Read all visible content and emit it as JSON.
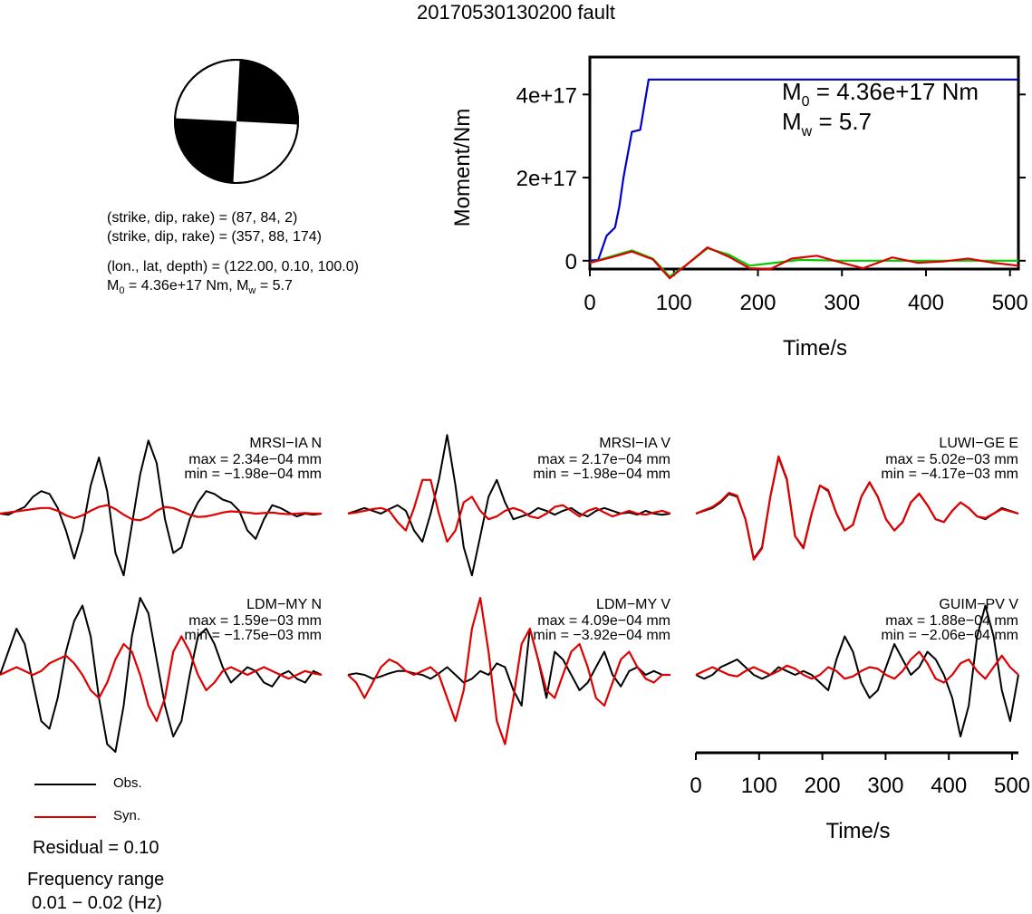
{
  "title": "20170530130200 fault",
  "beachball": {
    "strike": 87,
    "dip": 84,
    "rake": 2,
    "fill_color": "#000000"
  },
  "info": {
    "plane1": "(strike, dip, rake) = (87, 84, 2)",
    "plane2": "(strike, dip, rake) = (357, 88, 174)",
    "location": "(lon., lat, depth) = (122.00, 0.10, 100.0)",
    "moment_prefix": "M",
    "moment_sub": "0",
    "moment_rest": " = 4.36e+17 Nm, M",
    "mw_sub": "w",
    "mw_rest": " = 5.7"
  },
  "legend": {
    "obs_label": "Obs.",
    "syn_label": "Syn.",
    "obs_color": "#000000",
    "syn_color": "#dd0000"
  },
  "residual": "Residual = 0.10",
  "frequency_label": "Frequency range",
  "frequency_value": "0.01 − 0.02 (Hz)",
  "chart_data": [
    {
      "type": "line",
      "name": "moment-rate",
      "xlabel": "Time/s",
      "ylabel": "Moment/Nm",
      "xlim": [
        0,
        510
      ],
      "ylim": [
        -2e+16,
        4.9e+17
      ],
      "xticks": [
        0,
        100,
        200,
        300,
        400,
        500
      ],
      "xtick_labels": [
        "0",
        "100",
        "200",
        "300",
        "400",
        "500"
      ],
      "yticks": [
        0,
        2e+17,
        4e+17
      ],
      "ytick_labels": [
        "0",
        "2e+17",
        "4e+17"
      ],
      "annotation": {
        "m0_prefix": "M",
        "m0_sub": "0",
        "m0_rest": " = 4.36e+17 Nm",
        "mw_prefix": "M",
        "mw_sub": "w",
        "mw_rest": " = 5.7"
      },
      "series": [
        {
          "color": "#0000cc",
          "x": [
            0,
            10,
            20,
            30,
            35,
            40,
            50,
            60,
            70,
            510
          ],
          "y": [
            0,
            2000000000000000.0,
            6e+16,
            8e+16,
            1.3e+17,
            2e+17,
            3.1e+17,
            3.15e+17,
            4.36e+17,
            4.36e+17
          ]
        },
        {
          "color": "#00cc00",
          "x": [
            0,
            25,
            50,
            75,
            95,
            115,
            140,
            165,
            190,
            220,
            250,
            300,
            350,
            400,
            450,
            510
          ],
          "y": [
            -5000000000000000.0,
            1e+16,
            2.5e+16,
            5000000000000000.0,
            -3.8e+16,
            -1e+16,
            3e+16,
            1.5e+16,
            -1.2e+16,
            -5000000000000000.0,
            2000000000000000.0,
            0.0,
            0.0,
            0.0,
            0.0,
            0.0
          ]
        },
        {
          "color": "#dd0000",
          "x": [
            0,
            25,
            50,
            75,
            95,
            115,
            140,
            165,
            190,
            215,
            240,
            270,
            300,
            325,
            360,
            390,
            420,
            450,
            480,
            510
          ],
          "y": [
            -5000000000000000.0,
            8000000000000000.0,
            2.2e+16,
            3000000000000000.0,
            -4.2e+16,
            -1e+16,
            3.2e+16,
            1e+16,
            -1.8e+16,
            -2e+16,
            5000000000000000.0,
            1.2e+16,
            -5000000000000000.0,
            -1.8e+16,
            8000000000000000.0,
            -5000000000000000.0,
            -2000000000000000.0,
            5000000000000000.0,
            -5000000000000000.0,
            -1.2e+16
          ]
        }
      ]
    },
    {
      "type": "line",
      "name": "waveform-fits",
      "xlabel": "Time/s",
      "xlim": [
        0,
        510
      ],
      "xticks": [
        0,
        100,
        200,
        300,
        400,
        500
      ],
      "xtick_labels": [
        "0",
        "100",
        "200",
        "300",
        "400",
        "500"
      ],
      "stations": [
        {
          "label": "MRSI−IA N",
          "max": "max = 2.34e−04 mm",
          "min": "min = −1.98e−04 mm",
          "obs": [
            0,
            -0.02,
            0.05,
            0.12,
            0.3,
            0.4,
            0.35,
            0.1,
            -0.3,
            -0.8,
            -0.3,
            0.5,
            1.0,
            0.4,
            -0.7,
            -1.1,
            -0.2,
            0.7,
            1.3,
            0.9,
            -0.1,
            -0.7,
            -0.6,
            -0.1,
            0.2,
            0.4,
            0.35,
            0.25,
            0.2,
            0.05,
            -0.3,
            -0.45,
            -0.1,
            0.15,
            0.1,
            0.02,
            -0.05,
            0.0,
            -0.02,
            0.0
          ],
          "syn": [
            0,
            0.02,
            0.04,
            0.06,
            0.08,
            0.1,
            0.1,
            0.05,
            -0.03,
            -0.08,
            -0.03,
            0.05,
            0.12,
            0.15,
            0.08,
            -0.02,
            -0.1,
            -0.12,
            -0.06,
            0.05,
            0.12,
            0.1,
            0.04,
            -0.02,
            -0.06,
            -0.05,
            -0.02,
            0.02,
            0.04,
            0.03,
            0.02,
            0.0,
            0.01,
            0.02,
            0.0,
            -0.01,
            0.0,
            0.01,
            0.0,
            0.0
          ]
        },
        {
          "label": "MRSI−IA V",
          "max": "max = 2.17e−04 mm",
          "min": "min = −1.98e−04 mm",
          "obs": [
            0,
            0.05,
            0.1,
            0.05,
            0.0,
            0.08,
            0.15,
            0.05,
            -0.3,
            -0.5,
            0.0,
            0.6,
            1.4,
            0.5,
            -0.6,
            -1.1,
            -0.4,
            0.3,
            0.6,
            0.2,
            -0.1,
            -0.05,
            0.0,
            0.1,
            0.05,
            -0.02,
            0.05,
            0.1,
            0.0,
            -0.05,
            0.05,
            0.1,
            0.05,
            0.0,
            0.02,
            -0.02,
            0.05,
            0.0,
            -0.02,
            0.0
          ],
          "syn": [
            0,
            0.02,
            0.05,
            0.08,
            0.1,
            0.05,
            -0.15,
            -0.3,
            0.1,
            0.6,
            0.6,
            0.0,
            -0.5,
            -0.3,
            0.2,
            0.3,
            0.05,
            -0.1,
            -0.05,
            0.05,
            0.1,
            0.05,
            -0.05,
            -0.08,
            0.0,
            0.12,
            0.15,
            0.05,
            -0.05,
            0.05,
            0.1,
            0.02,
            -0.05,
            0.0,
            0.05,
            0.0,
            -0.02,
            0.02,
            0.05,
            0.0
          ]
        },
        {
          "label": "LUWI−GE E",
          "max": "max = 5.02e−03 mm",
          "min": "min = −4.17e−03 mm",
          "obs": [
            0,
            0.05,
            0.1,
            0.2,
            0.35,
            0.3,
            -0.1,
            -0.8,
            -0.6,
            0.3,
            1.0,
            0.6,
            -0.4,
            -0.6,
            0.0,
            0.5,
            0.4,
            0.0,
            -0.3,
            -0.2,
            0.3,
            0.55,
            0.3,
            -0.1,
            -0.3,
            -0.15,
            0.2,
            0.35,
            0.15,
            -0.1,
            -0.15,
            0.05,
            0.2,
            0.1,
            -0.05,
            -0.1,
            0.0,
            0.1,
            0.05,
            0.0
          ],
          "syn": [
            0,
            0.06,
            0.12,
            0.22,
            0.37,
            0.32,
            -0.1,
            -0.82,
            -0.62,
            0.3,
            1.02,
            0.62,
            -0.4,
            -0.62,
            0.0,
            0.5,
            0.42,
            0.0,
            -0.3,
            -0.2,
            0.3,
            0.56,
            0.3,
            -0.1,
            -0.3,
            -0.15,
            0.2,
            0.36,
            0.15,
            -0.1,
            -0.15,
            0.05,
            0.2,
            0.1,
            -0.05,
            -0.08,
            0.0,
            0.08,
            0.04,
            0.0
          ]
        },
        {
          "label": "LDM−MY N",
          "max": "max = 1.59e−03 mm",
          "min": "min = −1.75e−03 mm",
          "obs": [
            0,
            0.3,
            0.6,
            0.4,
            -0.1,
            -0.6,
            -0.7,
            -0.3,
            0.3,
            0.7,
            0.9,
            0.5,
            -0.3,
            -0.9,
            -1.0,
            -0.4,
            0.5,
            1.0,
            0.8,
            0.2,
            -0.4,
            -0.8,
            -0.6,
            0.0,
            0.5,
            0.6,
            0.4,
            0.1,
            -0.1,
            0.0,
            0.1,
            0.05,
            -0.1,
            -0.15,
            0.0,
            0.05,
            -0.05,
            -0.1,
            0.05,
            0.0
          ],
          "syn": [
            0,
            0.05,
            0.1,
            0.05,
            0.0,
            0.05,
            0.15,
            0.2,
            0.25,
            0.15,
            0.0,
            -0.2,
            -0.3,
            -0.1,
            0.2,
            0.4,
            0.3,
            0.0,
            -0.4,
            -0.6,
            -0.3,
            0.3,
            0.5,
            0.3,
            0.0,
            -0.2,
            -0.1,
            0.05,
            0.1,
            0.05,
            0.0,
            0.05,
            0.1,
            0.05,
            0.0,
            -0.05,
            0.0,
            0.05,
            0.02,
            0.0
          ]
        },
        {
          "label": "LDM−MY V",
          "max": "max = 4.09e−04 mm",
          "min": "min = −3.92e−04 mm",
          "obs": [
            0,
            0.02,
            0.0,
            -0.05,
            -0.02,
            0.02,
            0.05,
            0.05,
            0.02,
            0.0,
            -0.05,
            0.02,
            0.1,
            0.0,
            -0.1,
            -0.05,
            0.05,
            0.0,
            0.15,
            0.1,
            -0.2,
            -0.4,
            0.6,
            0.2,
            -0.3,
            0.3,
            0.2,
            0.0,
            -0.2,
            -0.1,
            0.1,
            0.3,
            0.0,
            -0.15,
            0.05,
            0.1,
            0.0,
            0.05,
            0.0,
            0.0
          ],
          "syn": [
            0,
            -0.1,
            -0.3,
            -0.1,
            0.1,
            0.2,
            0.15,
            0.05,
            0.0,
            0.05,
            0.1,
            0.0,
            -0.3,
            -0.6,
            -0.2,
            0.6,
            1.0,
            0.3,
            -0.6,
            -0.9,
            -0.3,
            0.4,
            0.6,
            0.2,
            -0.2,
            -0.3,
            0.0,
            0.3,
            0.4,
            0.1,
            -0.3,
            -0.4,
            -0.1,
            0.2,
            0.3,
            0.1,
            -0.05,
            -0.1,
            0.0,
            0.0
          ]
        },
        {
          "label": "GUIM−PV V",
          "max": "max = 1.88e−04 mm",
          "min": "min = −2.06e−04 mm",
          "obs": [
            0,
            -0.05,
            0.0,
            0.1,
            0.15,
            0.2,
            0.1,
            0.0,
            -0.05,
            0.0,
            0.1,
            0.05,
            0.0,
            0.05,
            0.0,
            -0.1,
            -0.2,
            0.2,
            0.5,
            0.3,
            -0.1,
            -0.3,
            -0.2,
            0.1,
            0.4,
            0.2,
            0.0,
            0.1,
            0.3,
            0.2,
            0.0,
            -0.3,
            -0.8,
            -0.4,
            0.5,
            0.9,
            0.5,
            -0.2,
            -0.6,
            0.0
          ],
          "syn": [
            0,
            0.05,
            0.1,
            0.05,
            0.0,
            -0.02,
            0.05,
            0.1,
            0.05,
            0.0,
            0.05,
            0.12,
            0.08,
            0.0,
            -0.05,
            0.0,
            0.1,
            0.05,
            -0.05,
            -0.02,
            0.05,
            0.1,
            0.08,
            0.0,
            -0.05,
            0.05,
            0.2,
            0.3,
            0.15,
            -0.05,
            -0.1,
            0.0,
            0.15,
            0.2,
            0.05,
            -0.05,
            0.1,
            0.25,
            0.1,
            0.0
          ]
        }
      ]
    }
  ]
}
